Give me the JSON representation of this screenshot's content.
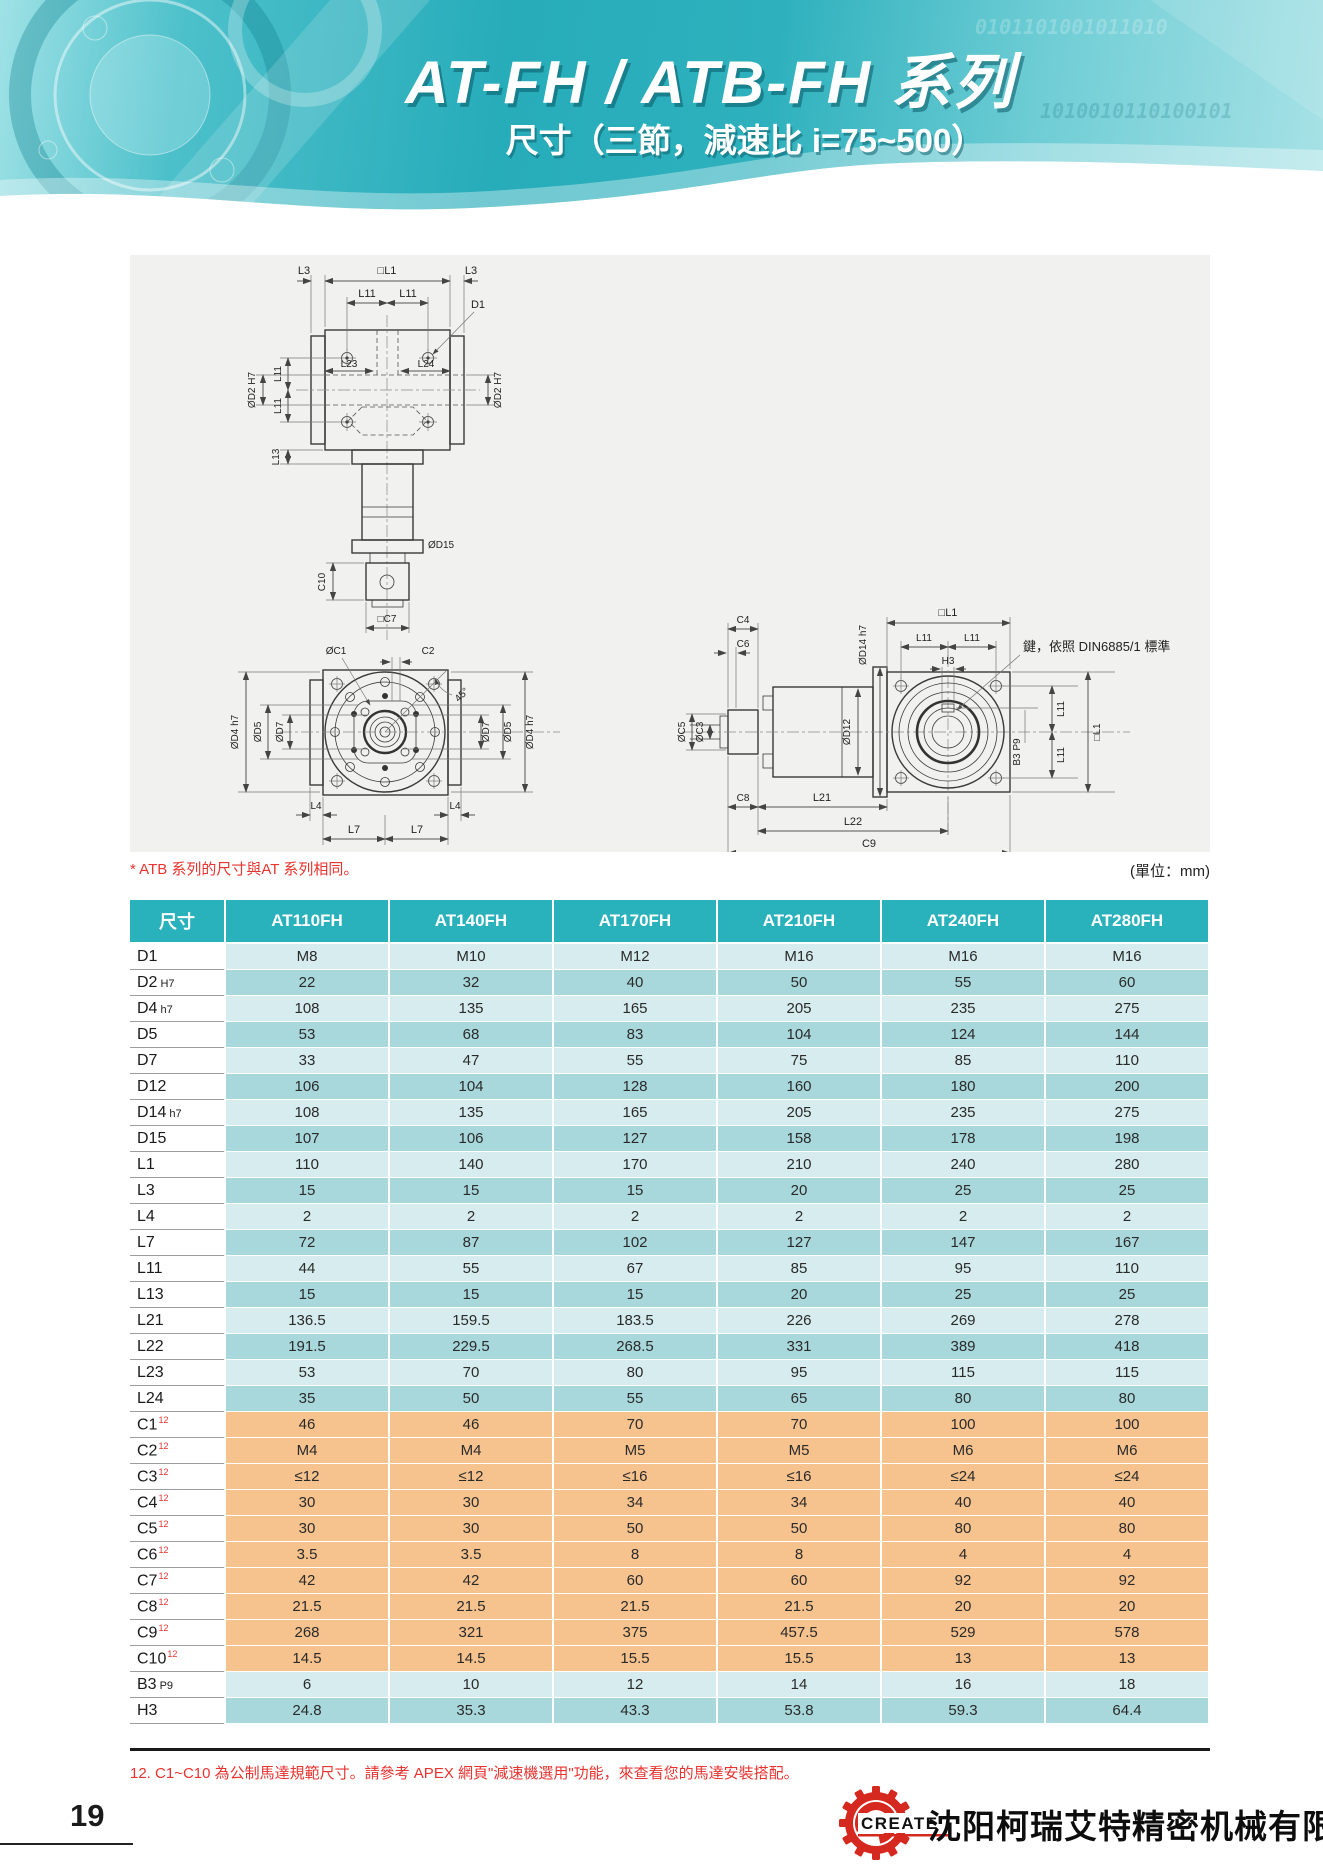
{
  "header": {
    "title": "AT-FH / ATB-FH 系列",
    "subtitle": "尺寸（三節，減速比 i=75~500）",
    "binary_deco": "0101101001011010",
    "binary_deco2": "1010010110100101"
  },
  "drawings": {
    "note_atb": "* ATB 系列的尺寸與AT 系列相同。",
    "unit_note": "(單位：mm)",
    "labels": {
      "L3": "L3",
      "L1": "□L1",
      "L11": "L11",
      "D1": "D1",
      "L23": "L23",
      "L24": "L24",
      "D2": "ØD2 H7",
      "L13": "L13",
      "D15": "ØD15",
      "C10": "C10",
      "C7": "□C7",
      "C1": "ØC1",
      "C2": "C2",
      "deg45": "45°",
      "D4": "ØD4 h7",
      "D5": "ØD5",
      "D7": "ØD7",
      "L4": "L4",
      "L7": "L7",
      "C4": "C4",
      "C6": "C6",
      "C5": "ØC5",
      "C3": "ØC3",
      "D14": "ØD14 h7",
      "D12": "ØD12",
      "H3": "H3",
      "B3": "B3 P9",
      "C8": "C8",
      "L21": "L21",
      "L22": "L22",
      "C9": "C9",
      "key_note": "鍵，依照 DIN6885/1 標準"
    }
  },
  "table": {
    "columns": [
      "尺寸",
      "AT110FH",
      "AT140FH",
      "AT170FH",
      "AT210FH",
      "AT240FH",
      "AT280FH"
    ],
    "rows": [
      {
        "label": "D1",
        "suffix": "",
        "sup": "",
        "shade": "light",
        "values": [
          "M8",
          "M10",
          "M12",
          "M16",
          "M16",
          "M16"
        ]
      },
      {
        "label": "D2",
        "suffix": "H7",
        "sup": "",
        "shade": "dark",
        "values": [
          "22",
          "32",
          "40",
          "50",
          "55",
          "60"
        ]
      },
      {
        "label": "D4",
        "suffix": "h7",
        "sup": "",
        "shade": "light",
        "values": [
          "108",
          "135",
          "165",
          "205",
          "235",
          "275"
        ]
      },
      {
        "label": "D5",
        "suffix": "",
        "sup": "",
        "shade": "dark",
        "values": [
          "53",
          "68",
          "83",
          "104",
          "124",
          "144"
        ]
      },
      {
        "label": "D7",
        "suffix": "",
        "sup": "",
        "shade": "light",
        "values": [
          "33",
          "47",
          "55",
          "75",
          "85",
          "110"
        ]
      },
      {
        "label": "D12",
        "suffix": "",
        "sup": "",
        "shade": "dark",
        "values": [
          "106",
          "104",
          "128",
          "160",
          "180",
          "200"
        ]
      },
      {
        "label": "D14",
        "suffix": "h7",
        "sup": "",
        "shade": "light",
        "values": [
          "108",
          "135",
          "165",
          "205",
          "235",
          "275"
        ]
      },
      {
        "label": "D15",
        "suffix": "",
        "sup": "",
        "shade": "dark",
        "values": [
          "107",
          "106",
          "127",
          "158",
          "178",
          "198"
        ]
      },
      {
        "label": "L1",
        "suffix": "",
        "sup": "",
        "shade": "light",
        "values": [
          "110",
          "140",
          "170",
          "210",
          "240",
          "280"
        ]
      },
      {
        "label": "L3",
        "suffix": "",
        "sup": "",
        "shade": "dark",
        "values": [
          "15",
          "15",
          "15",
          "20",
          "25",
          "25"
        ]
      },
      {
        "label": "L4",
        "suffix": "",
        "sup": "",
        "shade": "light",
        "values": [
          "2",
          "2",
          "2",
          "2",
          "2",
          "2"
        ]
      },
      {
        "label": "L7",
        "suffix": "",
        "sup": "",
        "shade": "dark",
        "values": [
          "72",
          "87",
          "102",
          "127",
          "147",
          "167"
        ]
      },
      {
        "label": "L11",
        "suffix": "",
        "sup": "",
        "shade": "light",
        "values": [
          "44",
          "55",
          "67",
          "85",
          "95",
          "110"
        ]
      },
      {
        "label": "L13",
        "suffix": "",
        "sup": "",
        "shade": "dark",
        "values": [
          "15",
          "15",
          "15",
          "20",
          "25",
          "25"
        ]
      },
      {
        "label": "L21",
        "suffix": "",
        "sup": "",
        "shade": "light",
        "values": [
          "136.5",
          "159.5",
          "183.5",
          "226",
          "269",
          "278"
        ]
      },
      {
        "label": "L22",
        "suffix": "",
        "sup": "",
        "shade": "dark",
        "values": [
          "191.5",
          "229.5",
          "268.5",
          "331",
          "389",
          "418"
        ]
      },
      {
        "label": "L23",
        "suffix": "",
        "sup": "",
        "shade": "light",
        "values": [
          "53",
          "70",
          "80",
          "95",
          "115",
          "115"
        ]
      },
      {
        "label": "L24",
        "suffix": "",
        "sup": "",
        "shade": "dark",
        "values": [
          "35",
          "50",
          "55",
          "65",
          "80",
          "80"
        ]
      },
      {
        "label": "C1",
        "suffix": "",
        "sup": "12",
        "shade": "orange",
        "values": [
          "46",
          "46",
          "70",
          "70",
          "100",
          "100"
        ]
      },
      {
        "label": "C2",
        "suffix": "",
        "sup": "12",
        "shade": "orange",
        "values": [
          "M4",
          "M4",
          "M5",
          "M5",
          "M6",
          "M6"
        ]
      },
      {
        "label": "C3",
        "suffix": "",
        "sup": "12",
        "shade": "orange",
        "values": [
          "≤12",
          "≤12",
          "≤16",
          "≤16",
          "≤24",
          "≤24"
        ]
      },
      {
        "label": "C4",
        "suffix": "",
        "sup": "12",
        "shade": "orange",
        "values": [
          "30",
          "30",
          "34",
          "34",
          "40",
          "40"
        ]
      },
      {
        "label": "C5",
        "suffix": "",
        "sup": "12",
        "shade": "orange",
        "values": [
          "30",
          "30",
          "50",
          "50",
          "80",
          "80"
        ]
      },
      {
        "label": "C6",
        "suffix": "",
        "sup": "12",
        "shade": "orange",
        "values": [
          "3.5",
          "3.5",
          "8",
          "8",
          "4",
          "4"
        ]
      },
      {
        "label": "C7",
        "suffix": "",
        "sup": "12",
        "shade": "orange",
        "values": [
          "42",
          "42",
          "60",
          "60",
          "92",
          "92"
        ]
      },
      {
        "label": "C8",
        "suffix": "",
        "sup": "12",
        "shade": "orange",
        "values": [
          "21.5",
          "21.5",
          "21.5",
          "21.5",
          "20",
          "20"
        ]
      },
      {
        "label": "C9",
        "suffix": "",
        "sup": "12",
        "shade": "orange",
        "values": [
          "268",
          "321",
          "375",
          "457.5",
          "529",
          "578"
        ]
      },
      {
        "label": "C10",
        "suffix": "",
        "sup": "12",
        "shade": "orange",
        "values": [
          "14.5",
          "14.5",
          "15.5",
          "15.5",
          "13",
          "13"
        ]
      },
      {
        "label": "B3",
        "suffix": "P9",
        "sup": "",
        "shade": "light",
        "values": [
          "6",
          "10",
          "12",
          "14",
          "16",
          "18"
        ]
      },
      {
        "label": "H3",
        "suffix": "",
        "sup": "",
        "shade": "dark",
        "values": [
          "24.8",
          "35.3",
          "43.3",
          "53.8",
          "59.3",
          "64.4"
        ]
      }
    ]
  },
  "footnote": "12. C1~C10 為公制馬達規範尺寸。請參考 APEX 網頁\"減速機選用\"功能，來查看您的馬達安裝搭配。",
  "footer": {
    "page_number": "19",
    "logo_text": "CREATE",
    "company_name": "沈阳柯瑞艾特精密机械有限公司"
  },
  "colors": {
    "accent_teal": "#29b1bc",
    "row_light": "#d6ecee",
    "row_dark": "#a9d8dc",
    "row_orange": "#f6c28e",
    "note_red": "#e8332f",
    "logo_red": "#d5281e"
  }
}
